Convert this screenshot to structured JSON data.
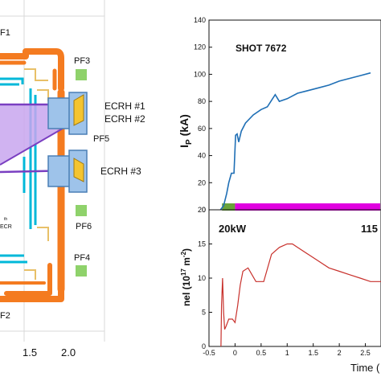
{
  "diagram": {
    "labels": {
      "pf1": "F1",
      "pf2": "F2",
      "pf3": "PF3",
      "pf4": "PF4",
      "pf5": "PF5",
      "pf6": "PF6",
      "ecrh1": "ECRH #1",
      "ecrh2": "ECRH #2",
      "ecrh3": "ECRH #3",
      "ecr_sup": "th",
      "ecr": "ECR"
    },
    "axis_ticks": [
      "1.5",
      "2.0"
    ],
    "colors": {
      "coil": "#f47b20",
      "wall": "#00b8d9",
      "pf": "#8fd26b",
      "beam": "#c8a6ef",
      "launcher": "#9ec3ea",
      "mirror": "#f4c430"
    }
  },
  "chart_data": [
    {
      "type": "line",
      "title": "SHOT 7672",
      "ylabel": "I_P (kA)",
      "ylim": [
        0,
        140
      ],
      "yticks": [
        "0",
        "20",
        "40",
        "60",
        "80",
        "100",
        "120",
        "140"
      ],
      "series": [
        {
          "color": "#1f6fb5",
          "x": [
            -0.28,
            -0.22,
            -0.16,
            -0.12,
            -0.07,
            -0.02,
            0.01,
            0.04,
            0.07,
            0.12,
            0.2,
            0.35,
            0.5,
            0.62,
            0.72,
            0.77,
            0.85,
            1.0,
            1.2,
            1.4,
            1.6,
            1.8,
            2.0,
            2.2,
            2.4,
            2.6
          ],
          "y": [
            0,
            3,
            12,
            20,
            27,
            27,
            55,
            56,
            50,
            58,
            64,
            70,
            74,
            76,
            82,
            85,
            80,
            82,
            86,
            88,
            90,
            92,
            95,
            97,
            99,
            101
          ]
        }
      ],
      "bars": [
        {
          "label": "20kW",
          "color": "#6aa33a",
          "label_color": "#5a9e2a",
          "x0": -0.25,
          "x1": 0.0
        },
        {
          "label": "115",
          "color": "#e000e0",
          "label_color": "#d000d0",
          "x0": 0.0,
          "x1": 2.8
        }
      ]
    },
    {
      "type": "line",
      "ylabel": "nel (10^17 m^-2)",
      "xlabel": "Time (",
      "xlim": [
        -0.5,
        2.8
      ],
      "ylim": [
        0,
        20
      ],
      "yticks": [
        "0",
        "5",
        "10",
        "15",
        "20"
      ],
      "xticks": [
        "-0.5",
        "0",
        "0.5",
        "1",
        "1.5",
        "2",
        "2.5"
      ],
      "series": [
        {
          "color": "#c8312c",
          "x": [
            -0.27,
            -0.26,
            -0.24,
            -0.22,
            -0.2,
            -0.17,
            -0.12,
            -0.05,
            0.0,
            0.05,
            0.1,
            0.15,
            0.25,
            0.4,
            0.55,
            0.7,
            0.85,
            1.0,
            1.1,
            1.2,
            1.4,
            1.6,
            1.8,
            2.0,
            2.2,
            2.4,
            2.6,
            2.8
          ],
          "y": [
            0,
            6,
            10,
            5,
            2.5,
            3,
            4,
            4,
            3.5,
            6,
            9,
            11,
            11.5,
            9.5,
            9.5,
            13.5,
            14.5,
            15,
            15,
            14.5,
            13.5,
            12.5,
            11.5,
            11,
            10.5,
            10,
            9.5,
            9.5
          ]
        }
      ]
    }
  ]
}
